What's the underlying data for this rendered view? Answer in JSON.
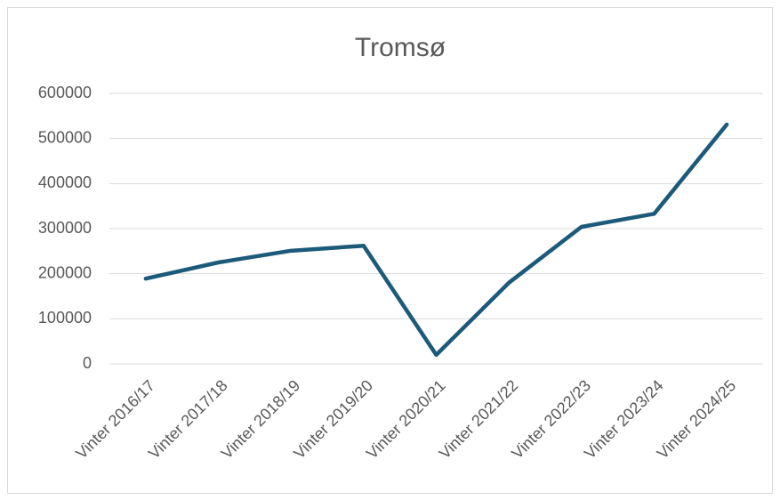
{
  "chart_data": {
    "type": "line",
    "title": "Tromsø",
    "categories": [
      "Vinter 2016/17",
      "Vinter 2017/18",
      "Vinter 2018/19",
      "Vinter 2019/20",
      "Vinter 2020/21",
      "Vinter 2021/22",
      "Vinter 2022/23",
      "Vinter 2023/24",
      "Vinter 2024/25"
    ],
    "series": [
      {
        "name": "Tromsø",
        "color": "#1b5a7a",
        "values": [
          189000,
          225000,
          251000,
          262000,
          20000,
          180000,
          304000,
          333000,
          531000
        ]
      }
    ],
    "ylim": [
      0,
      600000
    ],
    "yticks": [
      0,
      100000,
      200000,
      300000,
      400000,
      500000,
      600000
    ],
    "grid": true
  }
}
